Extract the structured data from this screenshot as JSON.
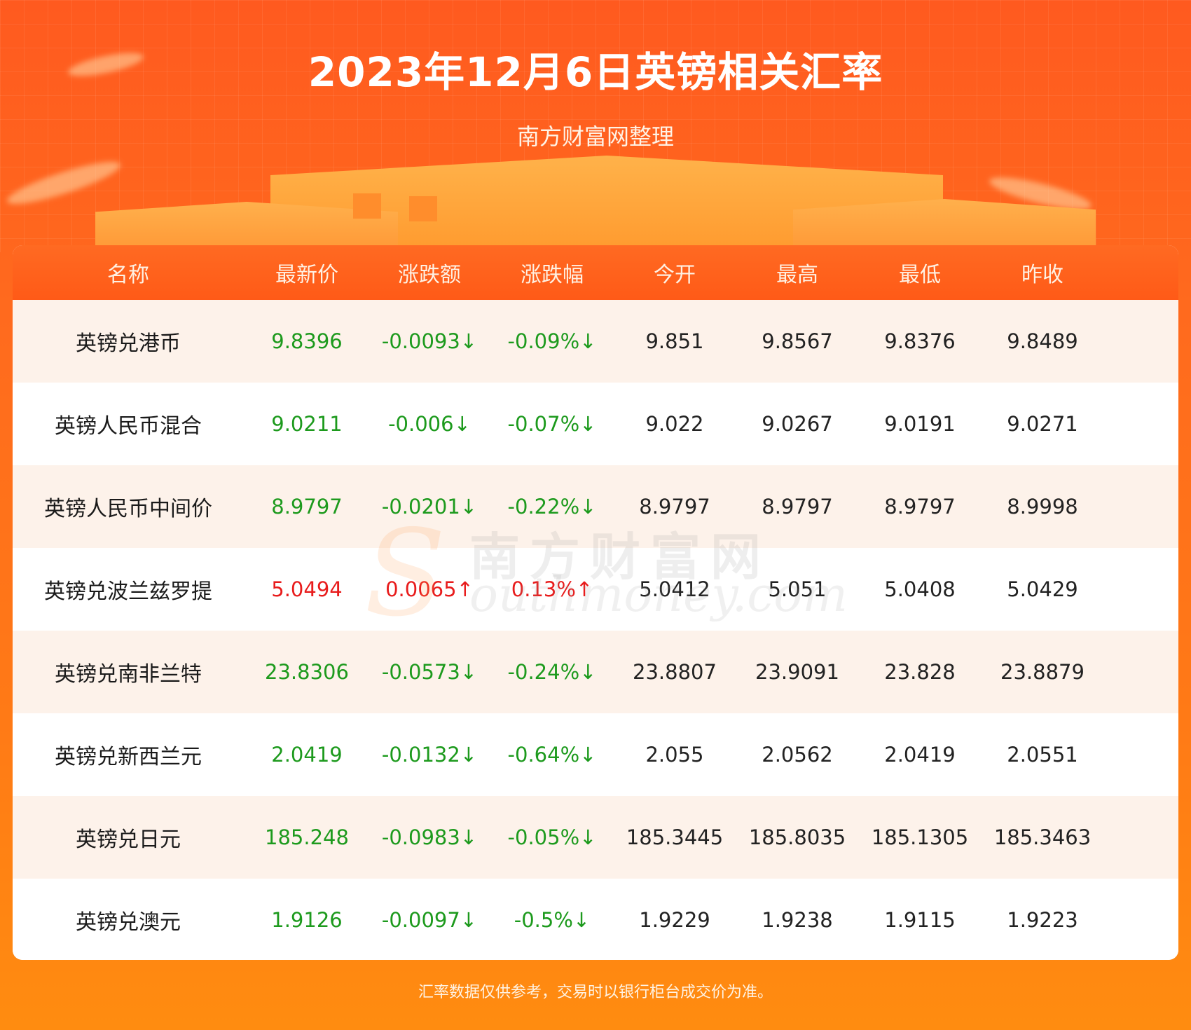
{
  "title": "2023年12月6日英镑相关汇率",
  "subtitle": "南方财富网整理",
  "colors": {
    "up": "#e81c1c",
    "down": "#1d9a1d",
    "header_bg": "#ff5a17",
    "page_bg": "#ff6a1e"
  },
  "table": {
    "headers": [
      "名称",
      "最新价",
      "涨跌额",
      "涨跌幅",
      "今开",
      "最高",
      "最低",
      "昨收"
    ],
    "rows": [
      {
        "name": "英镑兑港币",
        "direction": "down",
        "latest": "9.8396",
        "change": "-0.0093↓",
        "change_pct": "-0.09%↓",
        "open": "9.851",
        "high": "9.8567",
        "low": "9.8376",
        "prev_close": "9.8489"
      },
      {
        "name": "英镑人民币混合",
        "direction": "down",
        "latest": "9.0211",
        "change": "-0.006↓",
        "change_pct": "-0.07%↓",
        "open": "9.022",
        "high": "9.0267",
        "low": "9.0191",
        "prev_close": "9.0271"
      },
      {
        "name": "英镑人民币中间价",
        "direction": "down",
        "latest": "8.9797",
        "change": "-0.0201↓",
        "change_pct": "-0.22%↓",
        "open": "8.9797",
        "high": "8.9797",
        "low": "8.9797",
        "prev_close": "8.9998"
      },
      {
        "name": "英镑兑波兰兹罗提",
        "direction": "up",
        "latest": "5.0494",
        "change": "0.0065↑",
        "change_pct": "0.13%↑",
        "open": "5.0412",
        "high": "5.051",
        "low": "5.0408",
        "prev_close": "5.0429"
      },
      {
        "name": "英镑兑南非兰特",
        "direction": "down",
        "latest": "23.8306",
        "change": "-0.0573↓",
        "change_pct": "-0.24%↓",
        "open": "23.8807",
        "high": "23.9091",
        "low": "23.828",
        "prev_close": "23.8879"
      },
      {
        "name": "英镑兑新西兰元",
        "direction": "down",
        "latest": "2.0419",
        "change": "-0.0132↓",
        "change_pct": "-0.64%↓",
        "open": "2.055",
        "high": "2.0562",
        "low": "2.0419",
        "prev_close": "2.0551"
      },
      {
        "name": "英镑兑日元",
        "direction": "down",
        "latest": "185.248",
        "change": "-0.0983↓",
        "change_pct": "-0.05%↓",
        "open": "185.3445",
        "high": "185.8035",
        "low": "185.1305",
        "prev_close": "185.3463"
      },
      {
        "name": "英镑兑澳元",
        "direction": "down",
        "latest": "1.9126",
        "change": "-0.0097↓",
        "change_pct": "-0.5%↓",
        "open": "1.9229",
        "high": "1.9238",
        "low": "1.9115",
        "prev_close": "1.9223"
      }
    ]
  },
  "watermark": {
    "s_letter": "S",
    "cn": "南方财富网",
    "en": "outhmoney.com"
  },
  "footer": "汇率数据仅供参考，交易时以银行柜台成交价为准。"
}
